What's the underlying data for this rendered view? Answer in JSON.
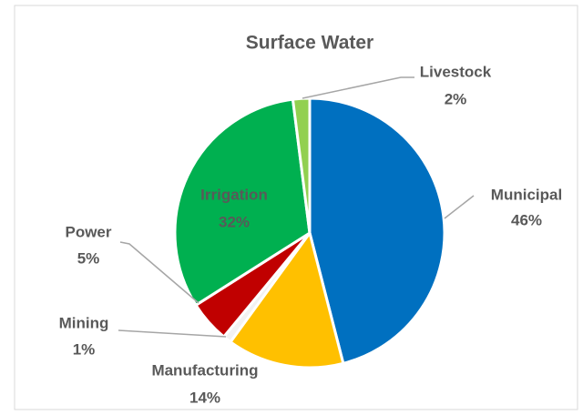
{
  "chart_data": {
    "type": "pie",
    "title": "Surface Water",
    "categories": [
      "Municipal",
      "Manufacturing",
      "Mining",
      "Power",
      "Irrigation",
      "Livestock"
    ],
    "values": [
      46,
      14,
      1,
      5,
      32,
      2
    ],
    "value_labels": [
      "46%",
      "14%",
      "1%",
      "5%",
      "32%",
      "2%"
    ],
    "colors": [
      "#0070c0",
      "#ffc000",
      "#f2f2f2",
      "#c00000",
      "#00b050",
      "#92d050"
    ]
  }
}
